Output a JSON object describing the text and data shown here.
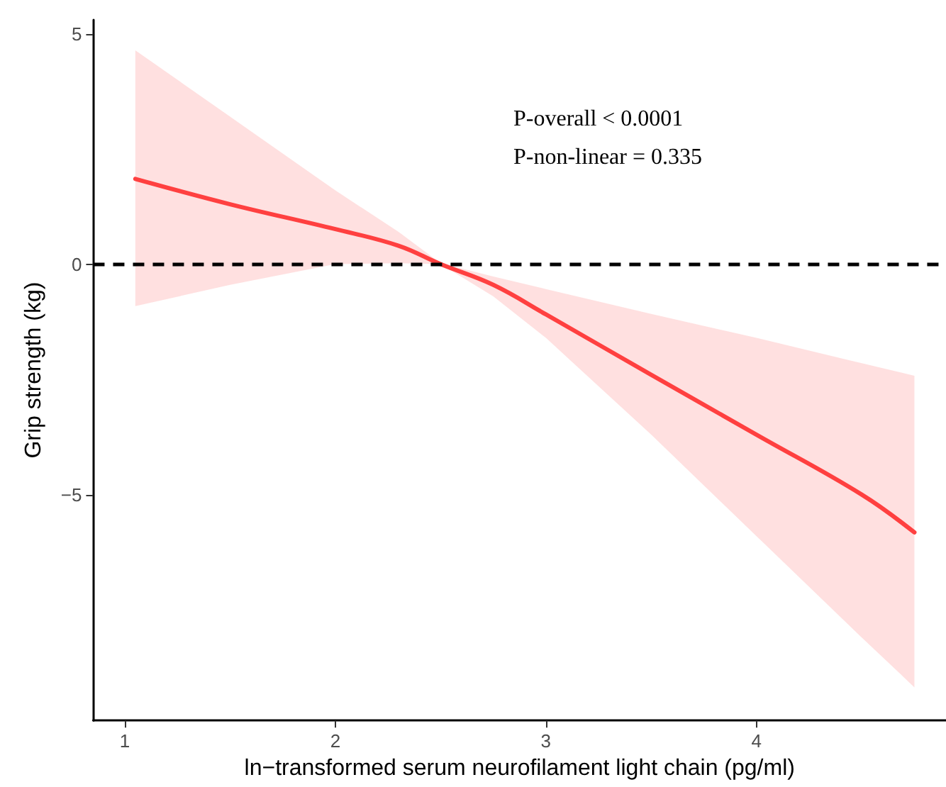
{
  "chart_data": {
    "type": "line",
    "xlabel": "ln−transformed serum neurofilament light chain (pg/ml)",
    "ylabel": "Grip strength (kg)",
    "x": [
      1.05,
      1.5,
      2,
      2.3,
      2.5,
      2.75,
      3,
      3.5,
      4,
      4.5,
      4.75
    ],
    "series": [
      {
        "color": "#ff4040",
        "values": [
          1.85,
          1.3,
          0.76,
          0.4,
          0,
          -0.45,
          -1.09,
          -2.4,
          -3.7,
          -5.0,
          -5.82
        ],
        "lower": [
          -0.91,
          -0.45,
          0,
          0.02,
          0,
          -0.7,
          -1.6,
          -3.7,
          -5.9,
          -8.1,
          -9.18
        ],
        "upper": [
          4.64,
          3.2,
          1.6,
          0.7,
          0.02,
          -0.27,
          -0.54,
          -1.08,
          -1.6,
          -2.15,
          -2.42
        ]
      }
    ],
    "xlim": [
      0.85,
      4.9
    ],
    "ylim": [
      -9.9,
      5.3
    ],
    "xticks": [
      1,
      2,
      3,
      4
    ],
    "yticks": [
      -5,
      0,
      5
    ],
    "ref_lines": [
      {
        "axis": "y",
        "value": 0,
        "color": "#000000",
        "line_style": "dashed"
      }
    ],
    "annotations": [
      "P-overall < 0.0001",
      "P-non-linear = 0.335"
    ],
    "grid": false,
    "marker": "none",
    "line_style": "solid"
  }
}
